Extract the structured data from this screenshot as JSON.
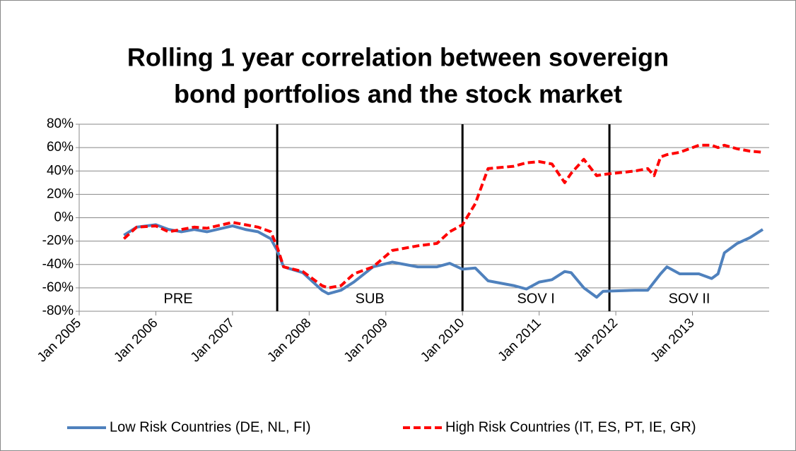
{
  "chart_data": {
    "type": "line",
    "title": [
      "Rolling 1 year correlation between sovereign",
      "bond portfolios and  the stock market"
    ],
    "x": [
      "2005-08",
      "2005-10",
      "2006-01",
      "2006-03",
      "2006-05",
      "2006-07",
      "2006-09",
      "2007-01",
      "2007-03",
      "2007-05",
      "2007-07",
      "2007-08",
      "2007-09",
      "2007-12",
      "2008-03",
      "2008-04",
      "2008-06",
      "2008-08",
      "2008-11",
      "2009-02",
      "2009-06",
      "2009-09",
      "2009-11",
      "2010-01",
      "2010-03",
      "2010-05",
      "2010-09",
      "2010-11",
      "2011-01",
      "2011-03",
      "2011-05",
      "2011-06",
      "2011-08",
      "2011-10",
      "2011-11",
      "2012-04",
      "2012-06",
      "2012-07",
      "2012-08",
      "2012-09",
      "2012-11",
      "2013-02",
      "2013-04",
      "2013-05",
      "2013-06",
      "2013-08",
      "2013-10",
      "2013-12"
    ],
    "series": [
      {
        "name": "Low Risk Countries (DE, NL, FI)",
        "color": "#4f81bd",
        "dash": false,
        "values": [
          -15,
          -8,
          -6,
          -10,
          -12,
          -10,
          -12,
          -7,
          -10,
          -12,
          -18,
          -28,
          -42,
          -47,
          -62,
          -65,
          -62,
          -55,
          -42,
          -38,
          -42,
          -42,
          -39,
          -44,
          -43,
          -54,
          -58,
          -61,
          -55,
          -53,
          -46,
          -47,
          -60,
          -68,
          -63,
          -62,
          -62,
          -55,
          -48,
          -42,
          -48,
          -48,
          -52,
          -48,
          -30,
          -22,
          -17,
          -10
        ]
      },
      {
        "name": "High Risk Countries (IT, ES, PT, IE, GR)",
        "color": "#ff0000",
        "dash": true,
        "values": [
          -18,
          -8,
          -7,
          -12,
          -10,
          -8,
          -9,
          -4,
          -6,
          -8,
          -12,
          -25,
          -42,
          -46,
          -58,
          -60,
          -58,
          -48,
          -42,
          -28,
          -24,
          -22,
          -12,
          -6,
          12,
          42,
          44,
          47,
          48,
          46,
          30,
          38,
          50,
          36,
          37,
          40,
          42,
          36,
          52,
          54,
          56,
          62,
          62,
          60,
          62,
          59,
          57,
          56
        ]
      }
    ],
    "xlim": [
      "2005-01",
      "2014-01"
    ],
    "xticks": [
      {
        "value": "2005-01",
        "label": "Jan 2005"
      },
      {
        "value": "2006-01",
        "label": "Jan 2006"
      },
      {
        "value": "2007-01",
        "label": "Jan 2007"
      },
      {
        "value": "2008-01",
        "label": "Jan 2008"
      },
      {
        "value": "2009-01",
        "label": "Jan 2009"
      },
      {
        "value": "2010-01",
        "label": "Jan 2010"
      },
      {
        "value": "2011-01",
        "label": "Jan 2011"
      },
      {
        "value": "2012-01",
        "label": "Jan 2012"
      },
      {
        "value": "2013-01",
        "label": "Jan 2013"
      }
    ],
    "ylim": [
      -80,
      80
    ],
    "yticks": [
      {
        "value": -80,
        "label": "-80%"
      },
      {
        "value": -60,
        "label": "-60%"
      },
      {
        "value": -40,
        "label": "-40%"
      },
      {
        "value": -20,
        "label": "-20%"
      },
      {
        "value": 0,
        "label": "0%"
      },
      {
        "value": 20,
        "label": "20%"
      },
      {
        "value": 40,
        "label": "40%"
      },
      {
        "value": 60,
        "label": "60%"
      },
      {
        "value": 80,
        "label": "80%"
      }
    ],
    "grid": true,
    "legend": "bottom",
    "regime_breaks": [
      "2007-08",
      "2010-01",
      "2011-12"
    ],
    "regime_labels": [
      "PRE",
      "SUB",
      "SOV I",
      "SOV II"
    ]
  }
}
